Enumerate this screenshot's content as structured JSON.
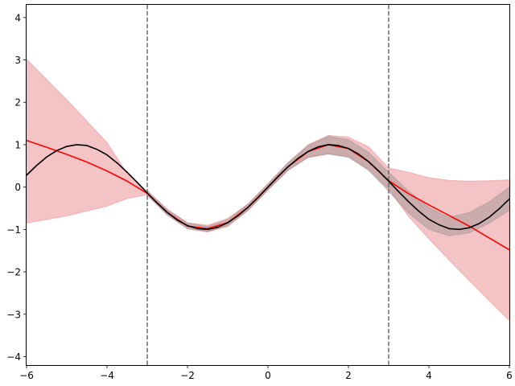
{
  "chart_data": {
    "type": "line",
    "title": "",
    "xlabel": "",
    "ylabel": "",
    "xlim": [
      -6,
      6
    ],
    "ylim": [
      -4.2,
      4.3
    ],
    "grid": false,
    "xticks": [
      -6,
      -4,
      -2,
      0,
      2,
      4,
      6
    ],
    "yticks": [
      -4,
      -3,
      -2,
      -1,
      0,
      1,
      2,
      3,
      4
    ],
    "x_tick_labels": [
      "−6",
      "−4",
      "−2",
      "0",
      "2",
      "4",
      "6"
    ],
    "y_tick_labels": [
      "−4",
      "−3",
      "−2",
      "−1",
      "0",
      "1",
      "2",
      "3",
      "4"
    ],
    "vlines": [
      {
        "x": -3,
        "style": "dashed",
        "color": "#6b6b6b"
      },
      {
        "x": 3,
        "style": "dashed",
        "color": "#6b6b6b"
      }
    ],
    "bands": [
      {
        "color": "#e8888c",
        "opacity": 0.5,
        "points": [
          {
            "x": -6.0,
            "lo": -0.85,
            "hi": 3.02
          },
          {
            "x": -5.0,
            "lo": -0.68,
            "hi": 2.06
          },
          {
            "x": -4.0,
            "lo": -0.45,
            "hi": 1.05
          },
          {
            "x": -3.5,
            "lo": -0.27,
            "hi": 0.32
          },
          {
            "x": -3.0,
            "lo": -0.18,
            "hi": -0.1
          },
          {
            "x": -2.5,
            "lo": -0.66,
            "hi": -0.52
          },
          {
            "x": -2.0,
            "lo": -0.99,
            "hi": -0.84
          },
          {
            "x": -1.5,
            "lo": -1.06,
            "hi": -0.9
          },
          {
            "x": -1.0,
            "lo": -0.93,
            "hi": -0.74
          },
          {
            "x": -0.5,
            "lo": -0.56,
            "hi": -0.4
          },
          {
            "x": 0.0,
            "lo": -0.07,
            "hi": 0.08
          },
          {
            "x": 0.5,
            "lo": 0.4,
            "hi": 0.58
          },
          {
            "x": 1.0,
            "lo": 0.7,
            "hi": 1.0
          },
          {
            "x": 1.5,
            "lo": 0.78,
            "hi": 1.22
          },
          {
            "x": 2.0,
            "lo": 0.72,
            "hi": 1.18
          },
          {
            "x": 2.5,
            "lo": 0.4,
            "hi": 0.95
          },
          {
            "x": 3.0,
            "lo": -0.05,
            "hi": 0.45
          },
          {
            "x": 3.5,
            "lo": -0.7,
            "hi": 0.35
          },
          {
            "x": 4.0,
            "lo": -1.22,
            "hi": 0.22
          },
          {
            "x": 4.5,
            "lo": -1.72,
            "hi": 0.16
          },
          {
            "x": 5.0,
            "lo": -2.2,
            "hi": 0.14
          },
          {
            "x": 5.5,
            "lo": -2.68,
            "hi": 0.15
          },
          {
            "x": 6.0,
            "lo": -3.15,
            "hi": 0.17
          }
        ]
      },
      {
        "color": "#808080",
        "opacity": 0.35,
        "points": [
          {
            "x": -3.0,
            "lo": -0.2,
            "hi": -0.08
          },
          {
            "x": -2.5,
            "lo": -0.66,
            "hi": -0.54
          },
          {
            "x": -2.0,
            "lo": -0.97,
            "hi": -0.85
          },
          {
            "x": -1.5,
            "lo": -1.05,
            "hi": -0.93
          },
          {
            "x": -1.0,
            "lo": -0.91,
            "hi": -0.77
          },
          {
            "x": -0.5,
            "lo": -0.55,
            "hi": -0.41
          },
          {
            "x": 0.0,
            "lo": -0.07,
            "hi": 0.07
          },
          {
            "x": 0.5,
            "lo": 0.39,
            "hi": 0.57
          },
          {
            "x": 1.0,
            "lo": 0.7,
            "hi": 0.98
          },
          {
            "x": 1.5,
            "lo": 0.78,
            "hi": 1.2
          },
          {
            "x": 2.0,
            "lo": 0.7,
            "hi": 1.12
          },
          {
            "x": 2.5,
            "lo": 0.4,
            "hi": 0.82
          },
          {
            "x": 3.0,
            "lo": -0.1,
            "hi": 0.35
          },
          {
            "x": 3.5,
            "lo": -0.62,
            "hi": -0.1
          },
          {
            "x": 4.0,
            "lo": -1.0,
            "hi": -0.48
          },
          {
            "x": 4.5,
            "lo": -1.15,
            "hi": -0.72
          },
          {
            "x": 5.0,
            "lo": -1.08,
            "hi": -0.6
          },
          {
            "x": 5.5,
            "lo": -0.85,
            "hi": -0.35
          },
          {
            "x": 6.0,
            "lo": -0.55,
            "hi": 0.0
          }
        ]
      }
    ],
    "series": [
      {
        "color": "#ff0000",
        "points": [
          {
            "x": -6.0,
            "y": 1.1
          },
          {
            "x": -5.5,
            "y": 0.94
          },
          {
            "x": -5.0,
            "y": 0.77
          },
          {
            "x": -4.5,
            "y": 0.59
          },
          {
            "x": -4.0,
            "y": 0.38
          },
          {
            "x": -3.5,
            "y": 0.14
          },
          {
            "x": -3.0,
            "y": -0.15
          },
          {
            "x": -2.5,
            "y": -0.6
          },
          {
            "x": -2.0,
            "y": -0.92
          },
          {
            "x": -1.5,
            "y": -0.98
          },
          {
            "x": -1.0,
            "y": -0.84
          },
          {
            "x": -0.5,
            "y": -0.48
          },
          {
            "x": 0.0,
            "y": 0.0
          },
          {
            "x": 0.5,
            "y": 0.48
          },
          {
            "x": 1.0,
            "y": 0.84
          },
          {
            "x": 1.5,
            "y": 1.0
          },
          {
            "x": 2.0,
            "y": 0.91
          },
          {
            "x": 2.5,
            "y": 0.6
          },
          {
            "x": 3.0,
            "y": 0.15
          },
          {
            "x": 3.5,
            "y": -0.16
          },
          {
            "x": 4.0,
            "y": -0.42
          },
          {
            "x": 4.5,
            "y": -0.67
          },
          {
            "x": 5.0,
            "y": -0.92
          },
          {
            "x": 5.5,
            "y": -1.2
          },
          {
            "x": 6.0,
            "y": -1.48
          }
        ]
      },
      {
        "color": "#000000",
        "points": [
          {
            "x": -6.0,
            "y": 0.28
          },
          {
            "x": -5.75,
            "y": 0.51
          },
          {
            "x": -5.5,
            "y": 0.71
          },
          {
            "x": -5.25,
            "y": 0.86
          },
          {
            "x": -5.0,
            "y": 0.96
          },
          {
            "x": -4.75,
            "y": 1.0
          },
          {
            "x": -4.5,
            "y": 0.98
          },
          {
            "x": -4.25,
            "y": 0.89
          },
          {
            "x": -4.0,
            "y": 0.76
          },
          {
            "x": -3.75,
            "y": 0.57
          },
          {
            "x": -3.5,
            "y": 0.35
          },
          {
            "x": -3.25,
            "y": 0.11
          },
          {
            "x": -3.0,
            "y": -0.14
          },
          {
            "x": -2.75,
            "y": -0.38
          },
          {
            "x": -2.5,
            "y": -0.6
          },
          {
            "x": -2.25,
            "y": -0.78
          },
          {
            "x": -2.0,
            "y": -0.91
          },
          {
            "x": -1.75,
            "y": -0.98
          },
          {
            "x": -1.5,
            "y": -1.0
          },
          {
            "x": -1.25,
            "y": -0.95
          },
          {
            "x": -1.0,
            "y": -0.84
          },
          {
            "x": -0.75,
            "y": -0.68
          },
          {
            "x": -0.5,
            "y": -0.48
          },
          {
            "x": -0.25,
            "y": -0.25
          },
          {
            "x": 0.0,
            "y": 0.0
          },
          {
            "x": 0.25,
            "y": 0.25
          },
          {
            "x": 0.5,
            "y": 0.48
          },
          {
            "x": 0.75,
            "y": 0.68
          },
          {
            "x": 1.0,
            "y": 0.84
          },
          {
            "x": 1.25,
            "y": 0.95
          },
          {
            "x": 1.5,
            "y": 1.0
          },
          {
            "x": 1.75,
            "y": 0.98
          },
          {
            "x": 2.0,
            "y": 0.91
          },
          {
            "x": 2.25,
            "y": 0.78
          },
          {
            "x": 2.5,
            "y": 0.6
          },
          {
            "x": 2.75,
            "y": 0.38
          },
          {
            "x": 3.0,
            "y": 0.14
          },
          {
            "x": 3.25,
            "y": -0.11
          },
          {
            "x": 3.5,
            "y": -0.35
          },
          {
            "x": 3.75,
            "y": -0.57
          },
          {
            "x": 4.0,
            "y": -0.76
          },
          {
            "x": 4.25,
            "y": -0.89
          },
          {
            "x": 4.5,
            "y": -0.98
          },
          {
            "x": 4.75,
            "y": -1.0
          },
          {
            "x": 5.0,
            "y": -0.96
          },
          {
            "x": 5.25,
            "y": -0.86
          },
          {
            "x": 5.5,
            "y": -0.71
          },
          {
            "x": 5.75,
            "y": -0.51
          },
          {
            "x": 6.0,
            "y": -0.28
          }
        ]
      }
    ]
  }
}
